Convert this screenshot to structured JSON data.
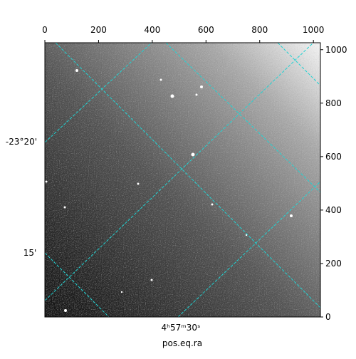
{
  "chart_data": {
    "type": "image",
    "xlabel": "pos.eq.ra",
    "xlim": [
      0,
      1026
    ],
    "xticks": [
      0,
      200,
      400,
      600,
      800,
      1000
    ],
    "ylim": [
      0,
      1026
    ],
    "yticks": [
      0,
      200,
      400,
      600,
      800,
      1000
    ],
    "dec_ticks": [
      "-23°20'",
      "15'"
    ],
    "ra_ticks": [
      "4ʰ57ᵐ30ˢ"
    ],
    "grid_color": "#22d3d3"
  }
}
